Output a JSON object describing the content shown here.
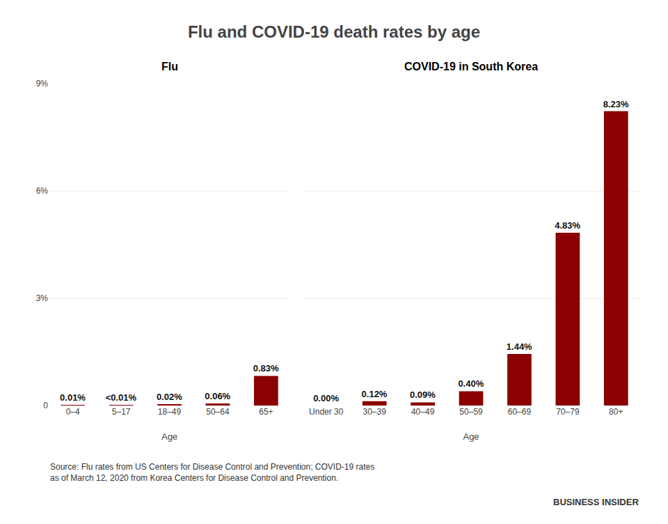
{
  "title": "Flu and COVID-19 death rates by age",
  "annotations": [
    "Source: Flu rates from US Centers for Disease Control and Prevention; COVID-19 rates\nas of March 12, 2020 from Korea Centers for Disease Control and Prevention.",
    "BUSINESS INSIDER"
  ],
  "chart_data": [
    {
      "type": "bar",
      "title": "Flu",
      "categories": [
        "0–4",
        "5–17",
        "18–49",
        "50–64",
        "65+"
      ],
      "values": [
        0.0001,
        5e-05,
        0.0002,
        0.0006,
        0.0083
      ],
      "value_labels": [
        "0.01%",
        "<0.01%",
        "0.02%",
        "0.06%",
        "0.83%"
      ],
      "data_labels": true,
      "color": "#8B0000",
      "xlabel": "Age",
      "ylim": [
        0,
        0.09
      ],
      "yticks": [
        0,
        {
          "value": 0.03,
          "label": "3%"
        },
        {
          "value": 0.06,
          "label": "6%"
        },
        {
          "value": 0.09,
          "label": "9%"
        }
      ],
      "grid": true
    },
    {
      "type": "bar",
      "title": "COVID-19 in South Korea",
      "categories": [
        "Under 30",
        "30–39",
        "40–49",
        "50–59",
        "60–69",
        "70–79",
        "80+"
      ],
      "values": [
        0.0,
        0.0012,
        0.0009,
        0.004,
        0.0144,
        0.0483,
        0.0823
      ],
      "value_labels": [
        "0.00%",
        "0.12%",
        "0.09%",
        "0.40%",
        "1.44%",
        "4.83%",
        "8.23%"
      ],
      "data_labels": true,
      "color": "#8B0000",
      "xlabel": "Age",
      "ylim": [
        0,
        0.09
      ],
      "yticks": [
        0,
        {
          "value": 0.03,
          "label": "3%"
        },
        {
          "value": 0.06,
          "label": "6%"
        },
        {
          "value": 0.09,
          "label": "9%"
        }
      ],
      "grid": true,
      "tick_labels": "x"
    }
  ]
}
